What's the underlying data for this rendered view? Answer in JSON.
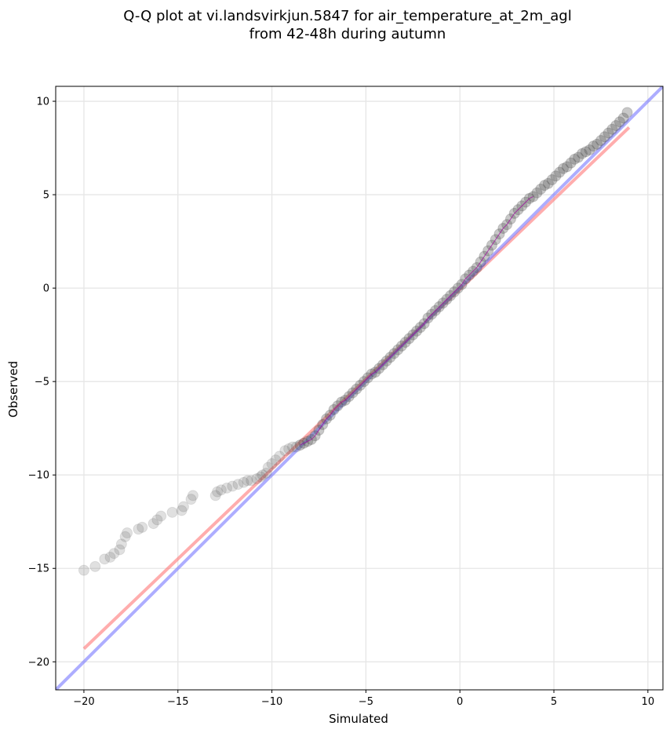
{
  "chart_data": {
    "type": "scatter",
    "title": "Q-Q plot at vi.landsvirkjun.5847 for air_temperature_at_2m_agl",
    "subtitle": "from 42-48h during autumn",
    "xlabel": "Simulated",
    "ylabel": "Observed",
    "xlim": [
      -21.5,
      10.8
    ],
    "ylim": [
      -21.5,
      10.8
    ],
    "xticks": [
      -20,
      -15,
      -10,
      -5,
      0,
      5,
      10
    ],
    "yticks": [
      -20,
      -15,
      -10,
      -5,
      0,
      5,
      10
    ],
    "xtick_labels": [
      "−20",
      "−15",
      "−10",
      "−5",
      "0",
      "5",
      "10"
    ],
    "ytick_labels": [
      "−20",
      "−15",
      "−10",
      "−5",
      "0",
      "5",
      "10"
    ],
    "grid": true,
    "colors": {
      "points": "#555555",
      "fit_line": "#ff7777",
      "identity_line": "#7777ff",
      "thin_line": "#a000a0"
    },
    "fit_line": {
      "x": [
        -20,
        9
      ],
      "y": [
        -19.3,
        8.6
      ]
    },
    "identity_line": {
      "x": [
        -21.5,
        10.8
      ],
      "y": [
        -21.5,
        10.8
      ]
    },
    "series": [
      {
        "x": [
          -20.0,
          -19.4,
          -18.9,
          -18.6,
          -18.4,
          -18.1,
          -18.0,
          -17.8,
          -17.7,
          -17.1,
          -16.9,
          -16.3,
          -16.1,
          -15.9,
          -15.3,
          -14.8,
          -14.7,
          -14.3,
          -14.2,
          -13.0,
          -12.9,
          -12.7,
          -12.4,
          -12.1,
          -11.8,
          -11.5,
          -11.3,
          -11.1,
          -10.8,
          -10.6,
          -10.5,
          -10.3,
          -10.2,
          -10.0,
          -9.8,
          -9.6,
          -9.3,
          -9.1,
          -8.9,
          -8.7,
          -8.5,
          -8.3,
          -8.1,
          -7.9,
          -7.7,
          -7.5,
          -7.3,
          -7.1,
          -6.9,
          -6.7,
          -6.5,
          -6.3,
          -6.1,
          -5.9,
          -5.7,
          -5.5,
          -5.3,
          -5.1,
          -4.9,
          -4.7,
          -4.5,
          -4.3,
          -4.1,
          -3.9,
          -3.7,
          -3.5,
          -3.3,
          -3.1,
          -2.9,
          -2.7,
          -2.5,
          -2.3,
          -2.1,
          -1.9,
          -1.7,
          -1.5,
          -1.3,
          -1.1,
          -0.9,
          -0.7,
          -0.5,
          -0.3,
          -0.1,
          0.1,
          0.3,
          0.5,
          0.7,
          0.9,
          1.1,
          1.3,
          1.5,
          1.7,
          1.9,
          2.1,
          2.3,
          2.5,
          2.7,
          2.9,
          3.1,
          3.3,
          3.5,
          3.7,
          3.9,
          4.1,
          4.3,
          4.5,
          4.7,
          4.9,
          5.1,
          5.3,
          5.5,
          5.7,
          5.9,
          6.1,
          6.3,
          6.5,
          6.7,
          6.9,
          7.1,
          7.3,
          7.5,
          7.7,
          7.9,
          8.1,
          8.3,
          8.5,
          8.7,
          8.9
        ],
        "y": [
          -15.1,
          -14.9,
          -14.5,
          -14.4,
          -14.2,
          -14.0,
          -13.7,
          -13.3,
          -13.1,
          -12.9,
          -12.8,
          -12.6,
          -12.4,
          -12.2,
          -12.0,
          -11.9,
          -11.7,
          -11.3,
          -11.1,
          -11.1,
          -10.9,
          -10.8,
          -10.7,
          -10.6,
          -10.5,
          -10.4,
          -10.3,
          -10.3,
          -10.2,
          -10.1,
          -10.0,
          -9.9,
          -9.6,
          -9.4,
          -9.2,
          -9.0,
          -8.7,
          -8.6,
          -8.5,
          -8.5,
          -8.4,
          -8.3,
          -8.2,
          -8.1,
          -7.9,
          -7.6,
          -7.3,
          -7.0,
          -6.8,
          -6.5,
          -6.3,
          -6.1,
          -6.0,
          -5.8,
          -5.6,
          -5.4,
          -5.2,
          -5.0,
          -4.8,
          -4.6,
          -4.5,
          -4.3,
          -4.1,
          -3.9,
          -3.7,
          -3.5,
          -3.3,
          -3.1,
          -2.9,
          -2.7,
          -2.5,
          -2.3,
          -2.1,
          -1.9,
          -1.6,
          -1.4,
          -1.2,
          -1.0,
          -0.8,
          -0.6,
          -0.4,
          -0.2,
          0.0,
          0.2,
          0.5,
          0.7,
          0.9,
          1.1,
          1.4,
          1.7,
          2.0,
          2.3,
          2.6,
          2.9,
          3.2,
          3.4,
          3.7,
          4.0,
          4.2,
          4.4,
          4.6,
          4.8,
          4.9,
          5.1,
          5.3,
          5.5,
          5.6,
          5.8,
          6.0,
          6.2,
          6.4,
          6.5,
          6.7,
          6.9,
          7.0,
          7.2,
          7.3,
          7.4,
          7.6,
          7.7,
          7.9,
          8.1,
          8.3,
          8.5,
          8.7,
          8.9,
          9.1,
          9.4
        ]
      }
    ]
  }
}
